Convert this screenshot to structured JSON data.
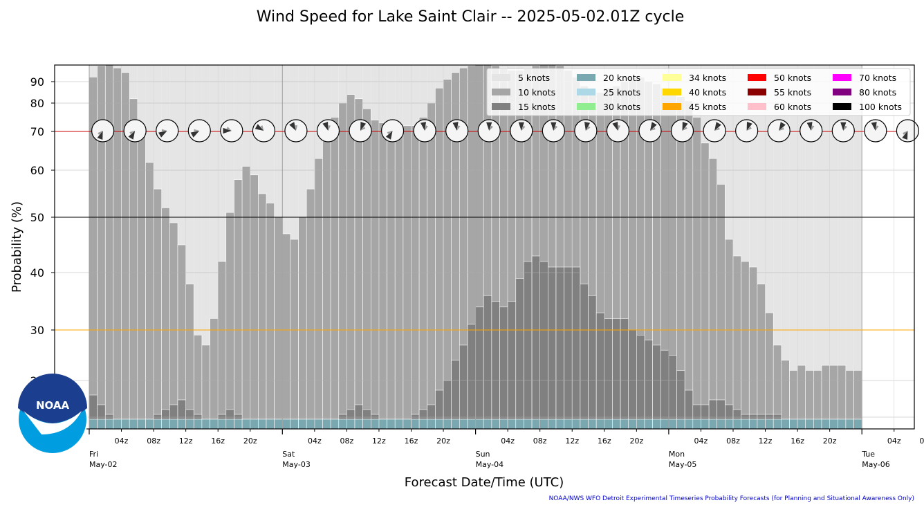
{
  "title": "Wind Speed for Lake Saint Clair -- 2025-05-02.01Z cycle",
  "credit": "NOAA/NWS WFO Detroit Experimental Timeseries Probability Forecasts (for Planning and Situational Awareness Only)",
  "logo_text": "NOAA",
  "chart_data": {
    "type": "bar",
    "xlabel": "Forecast Date/Time (UTC)",
    "ylabel": "Probability (%)",
    "y_scale": "sqrt-like (ticks 20,30,40,50,60,70,80,90)",
    "yticks": [
      20,
      30,
      40,
      50,
      60,
      70,
      80,
      90
    ],
    "ylim": [
      10,
      95
    ],
    "x_range_hours": [
      0,
      104
    ],
    "hour_ticks": [
      "04z",
      "08z",
      "12z",
      "16z",
      "20z"
    ],
    "days": [
      {
        "dow": "Fri",
        "date": "May-02"
      },
      {
        "dow": "Sat",
        "date": "May-03"
      },
      {
        "dow": "Sun",
        "date": "May-04"
      },
      {
        "dow": "Mon",
        "date": "May-05"
      },
      {
        "dow": "Tue",
        "date": "May-06"
      }
    ],
    "reference_lines": [
      {
        "value": 70,
        "color": "#cc0000"
      },
      {
        "value": 50,
        "color": "#000000"
      },
      {
        "value": 30,
        "color": "#ffa500"
      }
    ],
    "legend": [
      {
        "label": "5 knots",
        "color": "#e5e5e5"
      },
      {
        "label": "10 knots",
        "color": "#a6a6a6"
      },
      {
        "label": "15 knots",
        "color": "#808080"
      },
      {
        "label": "20 knots",
        "color": "#7aa8b0"
      },
      {
        "label": "25 knots",
        "color": "#add8e6"
      },
      {
        "label": "30 knots",
        "color": "#90ee90"
      },
      {
        "label": "34 knots",
        "color": "#ffff99"
      },
      {
        "label": "40 knots",
        "color": "#ffd700"
      },
      {
        "label": "45 knots",
        "color": "#ffa500"
      },
      {
        "label": "50 knots",
        "color": "#ff0000"
      },
      {
        "label": "55 knots",
        "color": "#8b0000"
      },
      {
        "label": "60 knots",
        "color": "#ffc0cb"
      },
      {
        "label": "70 knots",
        "color": "#ff00ff"
      },
      {
        "label": "80 knots",
        "color": "#800080"
      },
      {
        "label": "100 knots",
        "color": "#000000"
      }
    ],
    "series": [
      {
        "name": "5 knots",
        "values": [
          100,
          100,
          100,
          100,
          100,
          100,
          100,
          100,
          100,
          100,
          100,
          100,
          100,
          100,
          100,
          100,
          100,
          100,
          100,
          100,
          100,
          100,
          100,
          100,
          100,
          100,
          100,
          100,
          100,
          100,
          100,
          100,
          100,
          100,
          100,
          100,
          100,
          100,
          100,
          100,
          100,
          100,
          100,
          100,
          100,
          100,
          100,
          100,
          100,
          100,
          100,
          100,
          100,
          100,
          100,
          100,
          100,
          100,
          100,
          100,
          100,
          100,
          100,
          100,
          100,
          100,
          100,
          100,
          100,
          100,
          100,
          100,
          100,
          100,
          100,
          100,
          100,
          100,
          100,
          100,
          100,
          100,
          100,
          100,
          100,
          100,
          100,
          100,
          100,
          100,
          100,
          100,
          100,
          100,
          100,
          100,
          100,
          100,
          100,
          100,
          100,
          100,
          100,
          100,
          100,
          100,
          100,
          100,
          100,
          100,
          100,
          100,
          100,
          100,
          100,
          100,
          100,
          100,
          100,
          100,
          100,
          100,
          100
        ]
      },
      {
        "name": "10 knots",
        "values": [
          92,
          97,
          98,
          96,
          94,
          82,
          71,
          62,
          56,
          52,
          49,
          45,
          38,
          29,
          27,
          32,
          42,
          51,
          58,
          61,
          59,
          55,
          53,
          50,
          47,
          46,
          50,
          56,
          63,
          69,
          75,
          80,
          84,
          82,
          78,
          74,
          73,
          71,
          71,
          72,
          72,
          75,
          80,
          87,
          91,
          94,
          96,
          97,
          99,
          98,
          97,
          96,
          95,
          95,
          96,
          97,
          99,
          98,
          97,
          95,
          92,
          88,
          86,
          85,
          87,
          88,
          90,
          92,
          92,
          90,
          89,
          87,
          85,
          83,
          81,
          75,
          67,
          63,
          57,
          46,
          43,
          42,
          41,
          38,
          33,
          27,
          24,
          22,
          23,
          22,
          22,
          23,
          23,
          23,
          22,
          22
        ]
      },
      {
        "name": "15 knots",
        "values": [
          17,
          15,
          13,
          12,
          12,
          12,
          12,
          12,
          13,
          14,
          15,
          16,
          14,
          13,
          12,
          12,
          13,
          14,
          13,
          12,
          12,
          12,
          12,
          12,
          12,
          12,
          12,
          12,
          12,
          12,
          12,
          13,
          14,
          15,
          14,
          13,
          12,
          12,
          12,
          12,
          13,
          14,
          15,
          18,
          20,
          24,
          27,
          31,
          34,
          36,
          35,
          34,
          35,
          39,
          42,
          43,
          42,
          41,
          41,
          41,
          41,
          38,
          36,
          33,
          32,
          32,
          32,
          30,
          29,
          28,
          27,
          26,
          25,
          22,
          18,
          15,
          15,
          16,
          16,
          15,
          14,
          13,
          13,
          13,
          13,
          13,
          12,
          12,
          12,
          12,
          12,
          12,
          12,
          12,
          12,
          12
        ]
      },
      {
        "name": "20 knots",
        "values": [
          12,
          12,
          12,
          12,
          12,
          12,
          12,
          12,
          12,
          12,
          12,
          12,
          12,
          12,
          12,
          12,
          12,
          12,
          12,
          12,
          12,
          12,
          12,
          12,
          12,
          12,
          12,
          12,
          12,
          12,
          12,
          12,
          12,
          12,
          12,
          12,
          12,
          12,
          12,
          12,
          12,
          12,
          12,
          12,
          12,
          12,
          12,
          12,
          12,
          12,
          12,
          12,
          12,
          12,
          12,
          12,
          12,
          12,
          12,
          12,
          12,
          12,
          12,
          12,
          12,
          12,
          12,
          12,
          12,
          12,
          12,
          12,
          12,
          12,
          12,
          12,
          12,
          12,
          12,
          12,
          12,
          12,
          12,
          12,
          12,
          12,
          12,
          12,
          12,
          12,
          12,
          12,
          12,
          12,
          12,
          12
        ]
      }
    ],
    "wind_roses_hours": [
      1,
      5,
      9,
      13,
      17,
      21,
      25,
      29,
      33,
      37,
      41,
      45,
      49,
      53,
      57,
      61,
      65,
      69,
      73,
      77,
      81,
      85,
      89,
      93,
      97,
      101
    ],
    "wind_dirs_deg": [
      200,
      210,
      240,
      240,
      270,
      300,
      330,
      340,
      20,
      210,
      350,
      350,
      0,
      0,
      0,
      10,
      340,
      30,
      20,
      30,
      20,
      30,
      350,
      0,
      350,
      200
    ]
  }
}
